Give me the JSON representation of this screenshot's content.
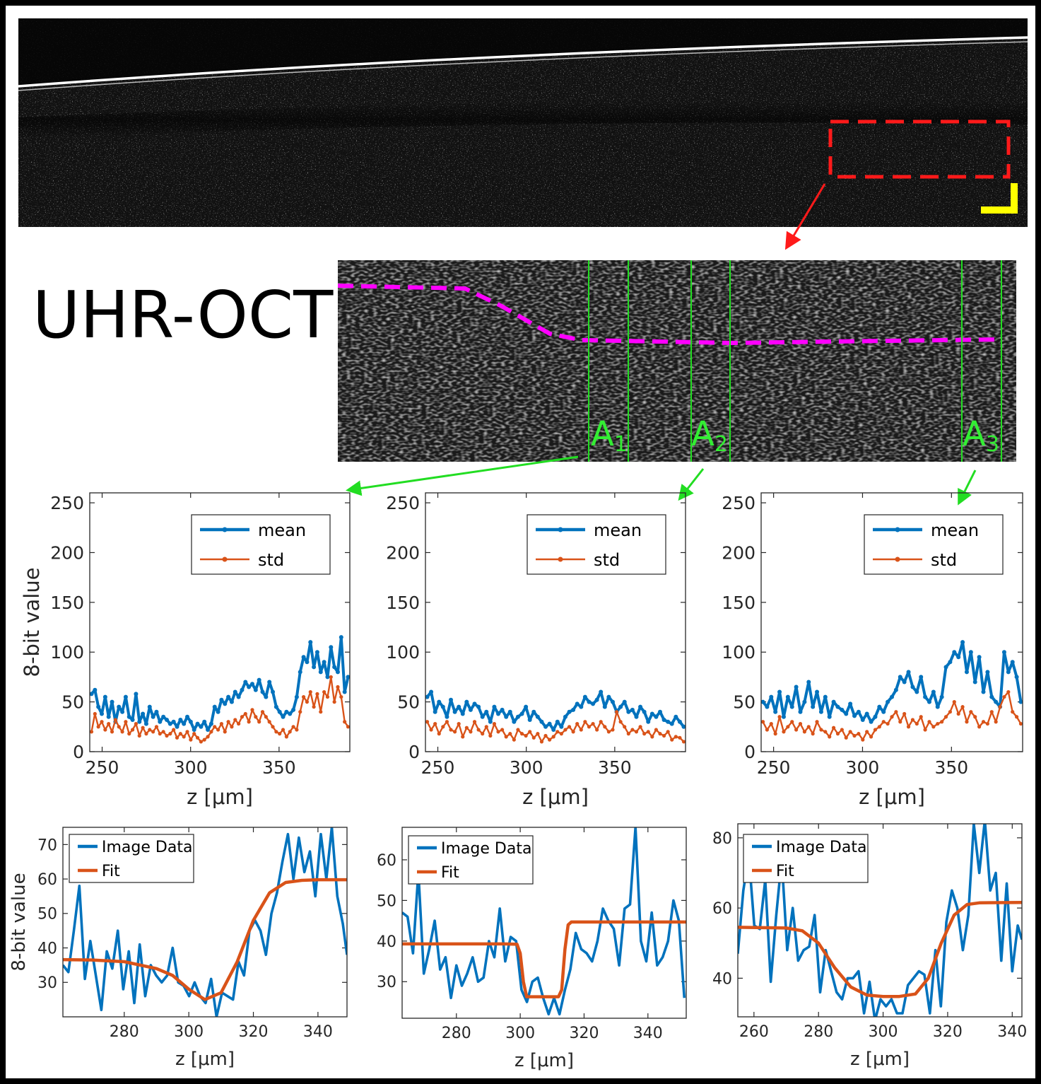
{
  "title": "UHR-OCT",
  "a_labels": [
    {
      "letter": "A",
      "sub": "1"
    },
    {
      "letter": "A",
      "sub": "2"
    },
    {
      "letter": "A",
      "sub": "3"
    }
  ],
  "colors": {
    "mean": "#0072BD",
    "std": "#D95319",
    "fit": "#D95319",
    "image": "#0072BD",
    "roi": "#ff1a1a",
    "boundary": "#ff00ff",
    "aline": "#22dd22",
    "scalebar": "#ffff00"
  },
  "chart_data": [
    {
      "type": "line",
      "xlabel": "z [μm]",
      "ylabel": "8-bit value",
      "xlim": [
        243,
        390
      ],
      "ylim": [
        0,
        260
      ],
      "xticks": [
        250,
        300,
        350
      ],
      "yticks": [
        0,
        50,
        100,
        150,
        200,
        250
      ],
      "legend": "top-right",
      "series": [
        {
          "name": "mean",
          "values": [
            58,
            62,
            45,
            38,
            55,
            35,
            50,
            30,
            45,
            40,
            55,
            35,
            32,
            58,
            30,
            38,
            28,
            45,
            35,
            40,
            30,
            35,
            32,
            28,
            30,
            25,
            32,
            28,
            35,
            30,
            22,
            28,
            25,
            30,
            22,
            28,
            45,
            40,
            52,
            48,
            55,
            50,
            60,
            55,
            62,
            70,
            65,
            68,
            62,
            72,
            60,
            55,
            70,
            60,
            45,
            40,
            35,
            40,
            38,
            42,
            55,
            80,
            95,
            90,
            110,
            85,
            100,
            80,
            90,
            75,
            105,
            85,
            80,
            115,
            60,
            75
          ]
        },
        {
          "name": "std",
          "values": [
            20,
            38,
            25,
            30,
            22,
            28,
            20,
            32,
            25,
            20,
            30,
            18,
            22,
            28,
            16,
            24,
            18,
            22,
            20,
            25,
            18,
            20,
            16,
            18,
            22,
            14,
            18,
            15,
            20,
            12,
            18,
            14,
            10,
            12,
            15,
            20,
            25,
            22,
            28,
            20,
            30,
            25,
            32,
            28,
            35,
            38,
            30,
            42,
            35,
            30,
            40,
            35,
            30,
            25,
            20,
            18,
            22,
            15,
            20,
            25,
            22,
            40,
            55,
            50,
            60,
            45,
            58,
            40,
            60,
            55,
            75,
            50,
            65,
            55,
            30,
            25
          ]
        }
      ]
    },
    {
      "type": "line",
      "xlabel": "z [μm]",
      "ylabel": "",
      "xlim": [
        243,
        390
      ],
      "ylim": [
        0,
        260
      ],
      "xticks": [
        250,
        300,
        350
      ],
      "yticks": [
        0,
        50,
        100,
        150,
        200,
        250
      ],
      "legend": "top-right",
      "series": [
        {
          "name": "mean",
          "values": [
            55,
            60,
            40,
            50,
            45,
            35,
            52,
            40,
            45,
            38,
            50,
            42,
            48,
            45,
            35,
            40,
            30,
            45,
            38,
            42,
            35,
            40,
            30,
            35,
            38,
            45,
            32,
            40,
            35,
            30,
            25,
            28,
            22,
            30,
            25,
            35,
            40,
            42,
            48,
            45,
            55,
            50,
            48,
            52,
            60,
            45,
            55,
            50,
            40,
            45,
            50,
            40,
            42,
            35,
            45,
            40,
            30,
            38,
            35,
            40,
            32,
            30,
            28,
            35,
            30,
            25
          ]
        },
        {
          "name": "std",
          "values": [
            30,
            22,
            28,
            18,
            25,
            30,
            22,
            20,
            28,
            15,
            24,
            20,
            30,
            22,
            18,
            25,
            16,
            28,
            20,
            22,
            15,
            18,
            12,
            22,
            18,
            16,
            20,
            14,
            18,
            10,
            16,
            12,
            15,
            20,
            18,
            22,
            25,
            20,
            28,
            22,
            30,
            25,
            28,
            22,
            30,
            25,
            20,
            22,
            40,
            30,
            25,
            18,
            22,
            20,
            25,
            18,
            20,
            15,
            22,
            18,
            16,
            20,
            12,
            15,
            14,
            10
          ]
        }
      ]
    },
    {
      "type": "line",
      "xlabel": "z [μm]",
      "ylabel": "",
      "xlim": [
        243,
        390
      ],
      "ylim": [
        0,
        260
      ],
      "xticks": [
        250,
        300,
        350
      ],
      "yticks": [
        0,
        50,
        100,
        150,
        200,
        250
      ],
      "legend": "top-right",
      "series": [
        {
          "name": "mean",
          "values": [
            50,
            45,
            55,
            40,
            60,
            35,
            55,
            45,
            65,
            40,
            50,
            70,
            45,
            60,
            40,
            55,
            35,
            50,
            45,
            42,
            38,
            48,
            36,
            40,
            32,
            38,
            30,
            35,
            45,
            40,
            50,
            55,
            62,
            75,
            70,
            80,
            65,
            60,
            75,
            55,
            50,
            60,
            45,
            55,
            85,
            90,
            100,
            95,
            110,
            80,
            100,
            70,
            95,
            60,
            80,
            55,
            50,
            45,
            100,
            80,
            90,
            75,
            50
          ]
        },
        {
          "name": "std",
          "values": [
            30,
            22,
            28,
            18,
            35,
            20,
            25,
            30,
            22,
            28,
            20,
            25,
            18,
            30,
            22,
            20,
            15,
            24,
            18,
            22,
            14,
            20,
            16,
            18,
            12,
            20,
            15,
            22,
            25,
            30,
            28,
            35,
            40,
            30,
            38,
            25,
            32,
            28,
            35,
            22,
            30,
            25,
            28,
            30,
            35,
            40,
            50,
            38,
            45,
            30,
            40,
            35,
            25,
            30,
            28,
            40,
            30,
            45,
            55,
            60,
            40,
            35,
            28
          ]
        }
      ]
    },
    {
      "type": "line",
      "xlabel": "z [μm]",
      "ylabel": "8-bit value",
      "xlim": [
        261,
        349
      ],
      "ylim": [
        20,
        75
      ],
      "xticks": [
        280,
        300,
        320,
        340
      ],
      "yticks": [
        30,
        40,
        50,
        60,
        70
      ],
      "legend": "top-left",
      "series": [
        {
          "name": "Image Data",
          "x": [
            261,
            262.7,
            264.4,
            266.1,
            267.8,
            269.5,
            271.2,
            272.9,
            274.6,
            276.3,
            278,
            279.7,
            281.4,
            283.1,
            284.8,
            286.5,
            288.2,
            289.9,
            291.6,
            293.3,
            295,
            296.7,
            298.4,
            300.1,
            301.8,
            303.5,
            305.2,
            306.9,
            308.6,
            310.3,
            312,
            313.7,
            315.4,
            317.1,
            318.8,
            320.5,
            322.2,
            323.9,
            325.6,
            327.3,
            329,
            330.7,
            332.4,
            334.1,
            335.8,
            337.5,
            339.2,
            340.9,
            342.6,
            344.3,
            346,
            347.7,
            349
          ],
          "values": [
            35,
            33,
            45,
            58,
            31,
            42,
            32,
            22,
            39,
            34,
            45,
            28,
            39,
            24,
            41,
            26,
            35,
            32,
            30,
            32,
            40,
            30,
            29,
            26,
            30,
            26,
            24,
            31,
            20,
            27,
            26,
            25,
            36,
            32,
            45,
            48,
            45,
            38,
            50,
            56,
            65,
            73,
            60,
            72,
            62,
            68,
            55,
            73,
            60,
            75,
            55,
            47,
            38
          ]
        },
        {
          "name": "Fit",
          "x": [
            261,
            270,
            280,
            290,
            295,
            300,
            305,
            310,
            315,
            320,
            325,
            330,
            335,
            340,
            349
          ],
          "values": [
            36.6,
            36.5,
            36,
            34,
            32,
            28,
            25,
            27,
            36,
            48,
            56,
            59,
            59.6,
            59.8,
            59.8
          ]
        }
      ]
    },
    {
      "type": "line",
      "xlabel": "z [μm]",
      "ylabel": "",
      "xlim": [
        263,
        352
      ],
      "ylim": [
        21,
        68
      ],
      "xticks": [
        280,
        300,
        320,
        340
      ],
      "yticks": [
        30,
        40,
        50,
        60
      ],
      "legend": "top-left",
      "series": [
        {
          "name": "Image Data",
          "x": [
            263,
            264.7,
            266.4,
            268.1,
            269.8,
            271.5,
            273.2,
            274.9,
            276.6,
            278.3,
            280,
            281.7,
            283.4,
            285.1,
            286.8,
            288.5,
            290.2,
            291.9,
            293.6,
            295.3,
            297,
            298.7,
            300.4,
            302.1,
            303.8,
            305.5,
            307.2,
            308.9,
            310.6,
            312.3,
            314,
            315.7,
            317.4,
            319.1,
            320.8,
            322.5,
            324.2,
            325.9,
            327.6,
            329.3,
            331,
            332.7,
            334.4,
            336.1,
            337.8,
            339.5,
            341.2,
            342.9,
            344.6,
            346.3,
            348,
            349.7,
            351.4
          ],
          "values": [
            47,
            46,
            37,
            57,
            32,
            38,
            45,
            33,
            36,
            26,
            34,
            29,
            32,
            36,
            30,
            31,
            40,
            36,
            48,
            35,
            41,
            40,
            28,
            25,
            30,
            31,
            26,
            22,
            26,
            22,
            28,
            33,
            42,
            38,
            37,
            35,
            40,
            48,
            45,
            43,
            34,
            48,
            49,
            68,
            40,
            35,
            47,
            34,
            36,
            40,
            50,
            45,
            26
          ]
        },
        {
          "name": "Fit",
          "x": [
            263,
            295,
            299,
            300,
            301,
            302,
            312,
            313,
            314,
            315,
            316,
            352
          ],
          "values": [
            39.3,
            39.3,
            39.2,
            37,
            30,
            26.3,
            26.3,
            28,
            38,
            44,
            44.7,
            44.7
          ]
        }
      ]
    },
    {
      "type": "line",
      "xlabel": "z [μm]",
      "ylabel": "",
      "xlim": [
        255,
        343
      ],
      "ylim": [
        29,
        84
      ],
      "xticks": [
        260,
        280,
        300,
        320,
        340
      ],
      "yticks": [
        40,
        60,
        80
      ],
      "legend": "top-left",
      "series": [
        {
          "name": "Image Data",
          "x": [
            255,
            256.7,
            258.4,
            260.1,
            261.8,
            263.5,
            265.2,
            266.9,
            268.6,
            270.3,
            272,
            273.7,
            275.4,
            277.1,
            278.8,
            280.5,
            282.2,
            283.9,
            285.6,
            287.3,
            289,
            290.7,
            292.4,
            294.1,
            295.8,
            297.5,
            299.2,
            300.9,
            302.6,
            304.3,
            306,
            307.7,
            309.4,
            311.1,
            312.8,
            314.5,
            316.2,
            317.9,
            319.6,
            321.3,
            323,
            324.7,
            326.4,
            328.1,
            329.8,
            331.5,
            333.2,
            334.9,
            336.6,
            338.3,
            340,
            341.7,
            343
          ],
          "values": [
            47,
            65,
            75,
            55,
            54,
            68,
            39,
            58,
            74,
            48,
            60,
            45,
            48,
            49,
            58,
            36,
            48,
            42,
            36,
            34,
            40,
            40,
            42,
            30,
            39,
            28,
            34,
            32,
            34,
            30,
            30,
            38,
            40,
            42,
            41,
            30,
            48,
            32,
            56,
            65,
            60,
            48,
            58,
            84,
            70,
            85,
            65,
            70,
            45,
            67,
            42,
            55,
            51
          ]
        },
        {
          "name": "Fit",
          "x": [
            255,
            270,
            275,
            280,
            285,
            290,
            295,
            300,
            305,
            310,
            314,
            318,
            322,
            326,
            330,
            343
          ],
          "values": [
            54.5,
            54.3,
            53.5,
            50,
            43,
            37.5,
            35.2,
            34.8,
            34.8,
            35.5,
            40,
            50,
            58,
            61,
            61.5,
            61.6
          ]
        }
      ]
    }
  ]
}
